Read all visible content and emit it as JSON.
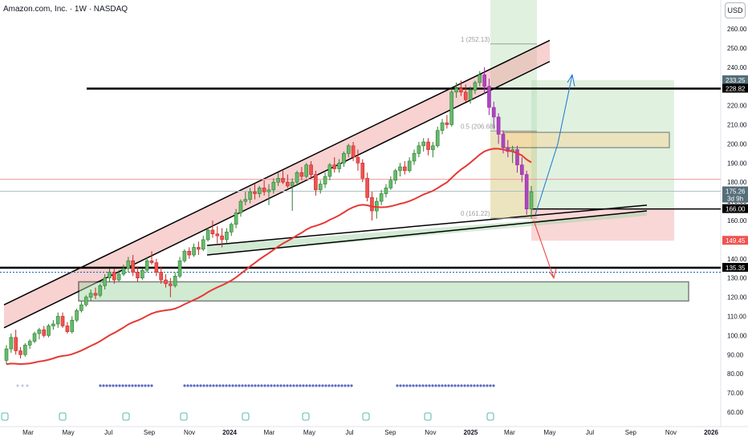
{
  "header": {
    "symbol_title": "Amazon.com, Inc. · 1W · NASDAQ",
    "currency_button": "USD"
  },
  "chart_data": {
    "type": "candlestick",
    "title": "Amazon.com, Inc. · 1W · NASDAQ",
    "ylim": [
      56,
      266
    ],
    "y_ticks": [
      260,
      250,
      240,
      230,
      220,
      210,
      200,
      190,
      180,
      170,
      160,
      150,
      140,
      130,
      120,
      110,
      100,
      90,
      80,
      70,
      60
    ],
    "x_ticks": [
      {
        "label": "Mar",
        "date": "2023-03-01"
      },
      {
        "label": "May",
        "date": "2023-05-01"
      },
      {
        "label": "Jul",
        "date": "2023-07-01"
      },
      {
        "label": "Sep",
        "date": "2023-09-01"
      },
      {
        "label": "Nov",
        "date": "2023-11-01"
      },
      {
        "label": "2024",
        "date": "2024-01-01"
      },
      {
        "label": "Mar",
        "date": "2024-03-01"
      },
      {
        "label": "May",
        "date": "2024-05-01"
      },
      {
        "label": "Jul",
        "date": "2024-07-01"
      },
      {
        "label": "Sep",
        "date": "2024-09-01"
      },
      {
        "label": "Nov",
        "date": "2024-11-01"
      },
      {
        "label": "2025",
        "date": "2025-01-01"
      },
      {
        "label": "Mar",
        "date": "2025-03-01"
      },
      {
        "label": "May",
        "date": "2025-05-01"
      },
      {
        "label": "Jul",
        "date": "2025-07-01"
      },
      {
        "label": "Sep",
        "date": "2025-09-01"
      },
      {
        "label": "Nov",
        "date": "2025-11-01"
      },
      {
        "label": "2026",
        "date": "2026-01-01"
      }
    ],
    "price_labels": [
      {
        "label": "233.25",
        "value": 233.25,
        "color": "#546e7a"
      },
      {
        "label": "228.82",
        "value": 228.82,
        "color": "#000000"
      },
      {
        "label": "175.26",
        "value": 175.26,
        "color": "#546e7a",
        "sublabel": "3d 9h"
      },
      {
        "label": "166.00",
        "value": 166.0,
        "color": "#000000"
      },
      {
        "label": "149.45",
        "value": 149.45,
        "color": "#ef5350"
      },
      {
        "label": "135.35",
        "value": 135.35,
        "color": "#000000"
      }
    ],
    "fib_levels": [
      {
        "label": "1 (252.13)",
        "value": 252.13
      },
      {
        "label": "0.5 (206.68)",
        "value": 206.68
      },
      {
        "label": "0 (161.22)",
        "value": 161.22
      }
    ],
    "candles": [
      [
        87,
        95,
        85,
        93
      ],
      [
        93,
        101,
        91,
        99
      ],
      [
        99,
        103,
        90,
        92
      ],
      [
        92,
        94,
        88,
        90
      ],
      [
        90,
        96,
        89,
        95
      ],
      [
        95,
        98,
        93,
        97
      ],
      [
        97,
        102,
        96,
        101
      ],
      [
        101,
        104,
        98,
        103
      ],
      [
        103,
        105,
        99,
        100
      ],
      [
        100,
        106,
        99,
        105
      ],
      [
        105,
        108,
        103,
        106
      ],
      [
        106,
        112,
        104,
        110
      ],
      [
        110,
        112,
        104,
        105
      ],
      [
        105,
        107,
        101,
        102
      ],
      [
        102,
        110,
        101,
        108
      ],
      [
        108,
        114,
        107,
        113
      ],
      [
        113,
        118,
        112,
        116
      ],
      [
        116,
        121,
        115,
        120
      ],
      [
        120,
        124,
        118,
        122
      ],
      [
        122,
        125,
        119,
        121
      ],
      [
        121,
        127,
        120,
        126
      ],
      [
        126,
        132,
        124,
        130
      ],
      [
        130,
        135,
        128,
        133
      ],
      [
        133,
        135,
        127,
        129
      ],
      [
        129,
        134,
        128,
        132
      ],
      [
        132,
        137,
        131,
        135
      ],
      [
        135,
        141,
        133,
        139
      ],
      [
        139,
        142,
        131,
        133
      ],
      [
        133,
        136,
        128,
        130
      ],
      [
        130,
        135,
        129,
        134
      ],
      [
        134,
        141,
        133,
        139
      ],
      [
        139,
        144,
        137,
        138
      ],
      [
        138,
        140,
        131,
        133
      ],
      [
        133,
        136,
        127,
        129
      ],
      [
        129,
        132,
        125,
        127
      ],
      [
        127,
        130,
        120,
        126
      ],
      [
        126,
        133,
        125,
        131
      ],
      [
        131,
        141,
        130,
        139
      ],
      [
        139,
        145,
        138,
        144
      ],
      [
        144,
        146,
        140,
        142
      ],
      [
        142,
        148,
        141,
        146
      ],
      [
        146,
        149,
        142,
        145
      ],
      [
        145,
        152,
        144,
        150
      ],
      [
        150,
        156,
        149,
        155
      ],
      [
        155,
        160,
        151,
        153
      ],
      [
        153,
        157,
        148,
        152
      ],
      [
        152,
        156,
        146,
        150
      ],
      [
        150,
        156,
        148,
        154
      ],
      [
        154,
        159,
        152,
        158
      ],
      [
        158,
        166,
        156,
        164
      ],
      [
        164,
        171,
        162,
        170
      ],
      [
        170,
        175,
        168,
        171
      ],
      [
        171,
        177,
        169,
        175
      ],
      [
        175,
        179,
        171,
        174
      ],
      [
        174,
        178,
        172,
        177
      ],
      [
        177,
        181,
        173,
        175
      ],
      [
        175,
        179,
        168,
        176
      ],
      [
        176,
        182,
        174,
        180
      ],
      [
        180,
        185,
        178,
        182
      ],
      [
        182,
        186,
        179,
        180
      ],
      [
        180,
        184,
        177,
        178
      ],
      [
        178,
        182,
        165,
        180
      ],
      [
        180,
        186,
        178,
        185
      ],
      [
        185,
        188,
        181,
        183
      ],
      [
        183,
        190,
        182,
        189
      ],
      [
        189,
        191,
        182,
        184
      ],
      [
        184,
        186,
        173,
        176
      ],
      [
        176,
        181,
        174,
        179
      ],
      [
        179,
        185,
        177,
        183
      ],
      [
        183,
        190,
        181,
        189
      ],
      [
        189,
        193,
        185,
        187
      ],
      [
        187,
        192,
        185,
        190
      ],
      [
        190,
        196,
        188,
        195
      ],
      [
        195,
        200,
        193,
        199
      ],
      [
        199,
        201,
        191,
        193
      ],
      [
        193,
        197,
        186,
        190
      ],
      [
        190,
        192,
        180,
        182
      ],
      [
        182,
        185,
        170,
        172
      ],
      [
        172,
        175,
        160,
        165
      ],
      [
        165,
        172,
        161,
        170
      ],
      [
        170,
        176,
        168,
        174
      ],
      [
        174,
        179,
        172,
        177
      ],
      [
        177,
        183,
        176,
        181
      ],
      [
        181,
        187,
        179,
        186
      ],
      [
        186,
        190,
        183,
        188
      ],
      [
        188,
        191,
        184,
        186
      ],
      [
        186,
        193,
        185,
        191
      ],
      [
        191,
        197,
        189,
        195
      ],
      [
        195,
        201,
        193,
        199
      ],
      [
        199,
        203,
        196,
        201
      ],
      [
        201,
        203,
        194,
        197
      ],
      [
        197,
        201,
        193,
        199
      ],
      [
        199,
        209,
        198,
        207
      ],
      [
        207,
        213,
        205,
        211
      ],
      [
        211,
        215,
        208,
        210
      ],
      [
        210,
        229,
        209,
        227
      ],
      [
        227,
        232,
        224,
        229
      ],
      [
        229,
        233,
        225,
        227
      ],
      [
        227,
        231,
        222,
        223
      ],
      [
        223,
        230,
        221,
        228
      ],
      [
        228,
        233,
        226,
        232
      ],
      [
        232,
        238,
        230,
        236
      ],
      [
        236,
        240,
        226,
        230
      ],
      [
        230,
        234,
        215,
        219
      ],
      [
        219,
        222,
        208,
        214
      ],
      [
        214,
        216,
        200,
        205
      ],
      [
        205,
        207,
        195,
        198
      ],
      [
        198,
        202,
        193,
        196
      ],
      [
        196,
        199,
        190,
        197
      ],
      [
        197,
        199,
        185,
        189
      ],
      [
        189,
        193,
        180,
        184
      ],
      [
        184,
        186,
        163,
        166
      ],
      [
        166,
        178,
        161,
        175
      ]
    ],
    "ema_series_color": "#e53935",
    "channel_label": "rising channel"
  }
}
